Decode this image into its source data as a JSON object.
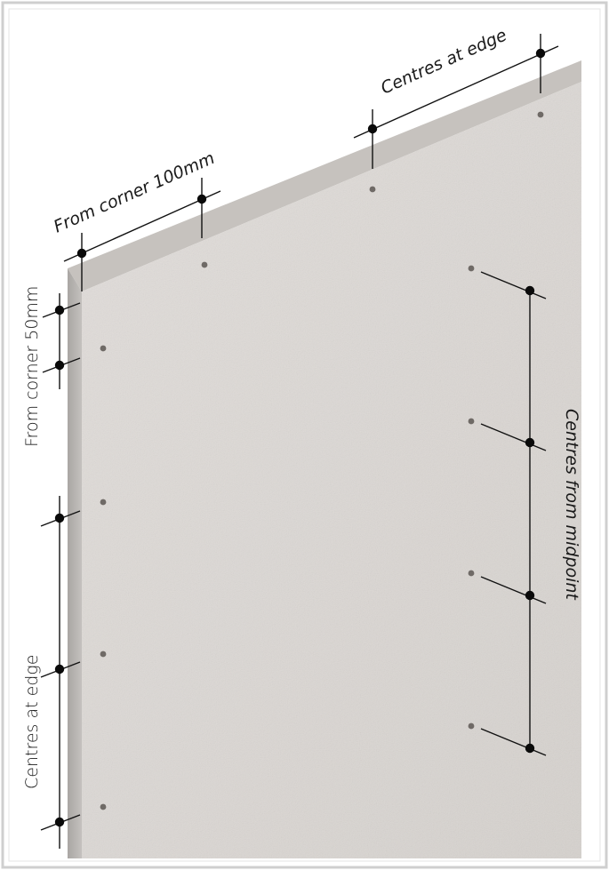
{
  "diagram": {
    "labels": {
      "top_right": "Centres at edge",
      "top_left": "From corner 100mm",
      "left_top": "From corner 50mm",
      "left_bottom": "Centres at edge",
      "right": "Centres from midpoint"
    },
    "colors": {
      "board_face": "#dcd8d4",
      "board_top_edge": "#c9c5c1",
      "board_left_edge": "#b9b6b3",
      "frame_border": "#cfcfcf",
      "dimension_line": "#111111",
      "fixing_hole": "#6f6a66"
    }
  }
}
